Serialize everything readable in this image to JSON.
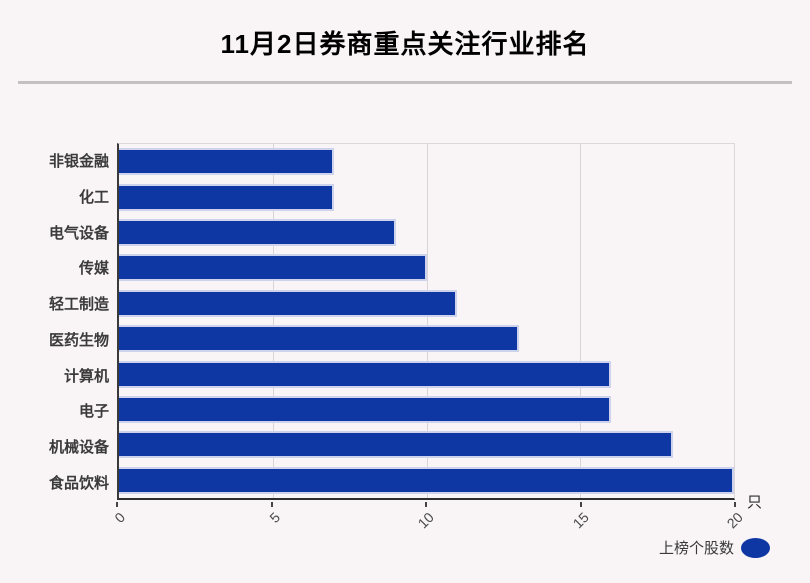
{
  "title": "11月2日券商重点关注行业排名",
  "unit_label": "只",
  "legend": {
    "label": "上榜个股数"
  },
  "colors": {
    "background": "#f9f4f5",
    "bar": "#0f37a3",
    "bar_edge": "#cdd3ec",
    "grid": "#d9d5d6",
    "axis": "#3a3a3a",
    "divider": "#c4c0c1"
  },
  "chart_data": {
    "type": "bar",
    "orientation": "horizontal",
    "title": "11月2日券商重点关注行业排名",
    "categories": [
      "非银金融",
      "化工",
      "电气设备",
      "传媒",
      "轻工制造",
      "医药生物",
      "计算机",
      "电子",
      "机械设备",
      "食品饮料"
    ],
    "values": [
      7,
      7,
      9,
      10,
      11,
      13,
      16,
      16,
      18,
      20
    ],
    "series_name": "上榜个股数",
    "xlabel": "只",
    "ylabel": "",
    "xlim": [
      0,
      20
    ],
    "xticks": [
      0,
      5,
      10,
      15,
      20
    ],
    "grid": true,
    "legend_position": "bottom-right"
  }
}
